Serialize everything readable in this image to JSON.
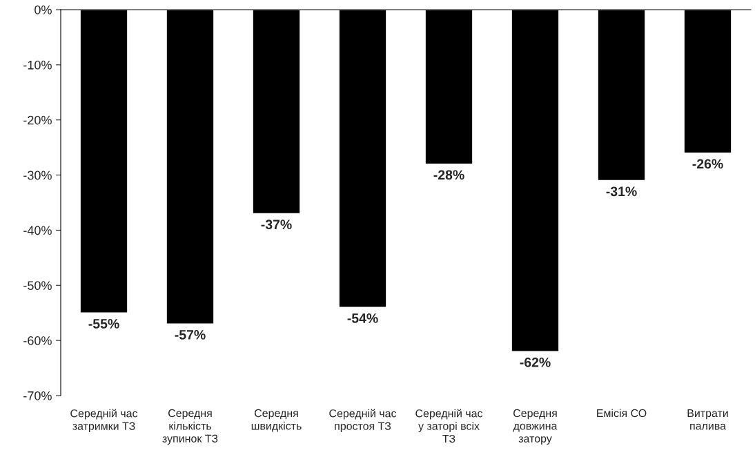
{
  "chart_data": {
    "type": "bar",
    "categories": [
      "Середній час\nзатримки ТЗ",
      "Середня\nкількість\nзупинок ТЗ",
      "Середня\nшвидкість",
      "Середній час\nпростоя ТЗ",
      "Середній час\nу заторі всіх\nТЗ",
      "Середня\nдовжина\nзатору",
      "Емісія СО",
      "Витрати\nпалива"
    ],
    "values": [
      -55,
      -57,
      -37,
      -54,
      -28,
      -62,
      -31,
      -26
    ],
    "value_labels": [
      "-55%",
      "-57%",
      "-37%",
      "-54%",
      "-28%",
      "-62%",
      "-31%",
      "-26%"
    ],
    "color": "#000000",
    "ylim": [
      -70,
      0
    ],
    "yticks": [
      {
        "value": 0,
        "label": "0%"
      },
      {
        "value": -10,
        "label": "-10%"
      },
      {
        "value": -20,
        "label": "-20%"
      },
      {
        "value": -30,
        "label": "-30%"
      },
      {
        "value": -40,
        "label": "-40%"
      },
      {
        "value": -50,
        "label": "-50%"
      },
      {
        "value": -60,
        "label": "-60%"
      },
      {
        "value": -70,
        "label": "-70%"
      }
    ],
    "grid": false
  }
}
